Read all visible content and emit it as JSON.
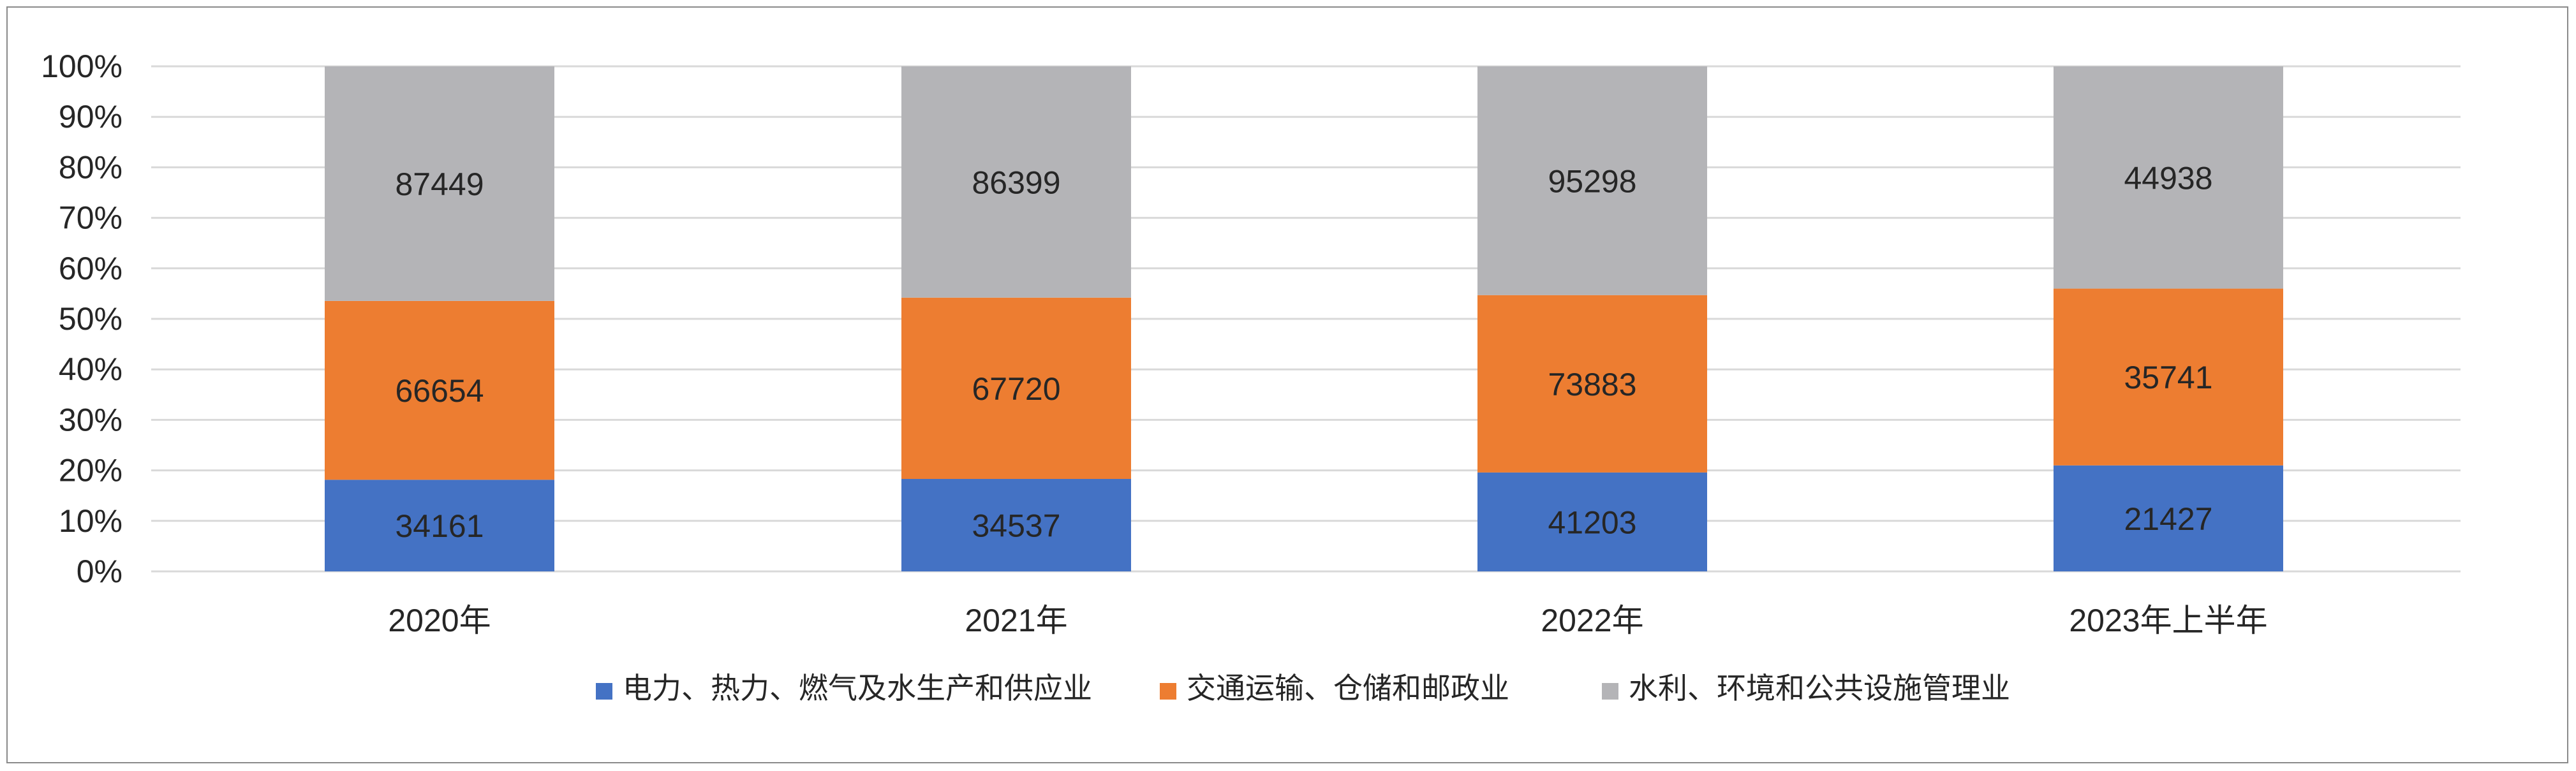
{
  "chart_data": {
    "type": "bar",
    "stacked": "percent",
    "title": "",
    "xlabel": "",
    "ylabel": "",
    "ylim": [
      0,
      100
    ],
    "ytick_step": 10,
    "ytick_suffix": "%",
    "grid": true,
    "legend_position": "bottom",
    "categories": [
      "2020年",
      "2021年",
      "2022年",
      "2023年上半年"
    ],
    "series": [
      {
        "name": "电力、热力、燃气及水生产和供应业",
        "color": "#4472C4",
        "values": [
          34161,
          34537,
          41203,
          21427
        ]
      },
      {
        "name": "交通运输、仓储和邮政业",
        "color": "#ED7D31",
        "values": [
          66654,
          67720,
          73883,
          35741
        ]
      },
      {
        "name": "水利、环境和公共设施管理业",
        "color": "#B4B4B7",
        "values": [
          87449,
          86399,
          95298,
          44938
        ]
      }
    ]
  }
}
